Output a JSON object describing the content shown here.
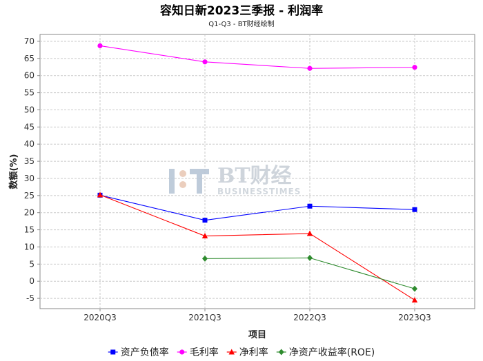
{
  "chart_data": {
    "type": "line",
    "title": "容知日新2023三季报 - 利润率",
    "subtitle": "Q1-Q3 - BT财经绘制",
    "xlabel": "项目",
    "ylabel": "数额(%)",
    "categories": [
      "2020Q3",
      "2021Q3",
      "2022Q3",
      "2023Q3"
    ],
    "ylim": [
      -8,
      72
    ],
    "yticks": [
      -5,
      0,
      5,
      10,
      15,
      20,
      25,
      30,
      35,
      40,
      45,
      50,
      55,
      60,
      65,
      70
    ],
    "grid": true,
    "legend_position": "bottom",
    "series": [
      {
        "name": "资产负债率",
        "color": "#0000ff",
        "marker": "square",
        "values": [
          25.1,
          17.8,
          21.9,
          20.9
        ]
      },
      {
        "name": "毛利率",
        "color": "#ff00ff",
        "marker": "circle",
        "values": [
          68.7,
          64.0,
          62.1,
          62.4
        ]
      },
      {
        "name": "净利率",
        "color": "#ff0000",
        "marker": "triangle",
        "values": [
          25.2,
          13.2,
          13.9,
          -5.5
        ]
      },
      {
        "name": "净资产收益率(ROE)",
        "color": "#2e8b2e",
        "marker": "diamond",
        "values": [
          null,
          6.6,
          6.8,
          -2.2
        ]
      }
    ]
  },
  "watermark": {
    "brand": "BT财经",
    "tagline": "BUSINESSTIMES"
  }
}
